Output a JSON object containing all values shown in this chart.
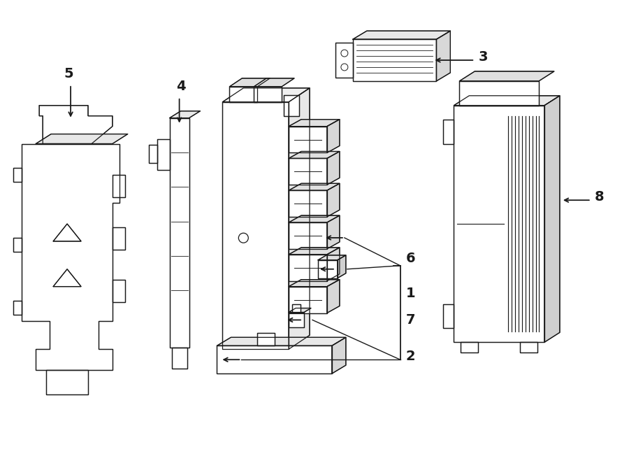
{
  "background_color": "#ffffff",
  "line_color": "#1a1a1a",
  "fig_width": 9.0,
  "fig_height": 6.62,
  "dpi": 100,
  "lw": 0.9
}
